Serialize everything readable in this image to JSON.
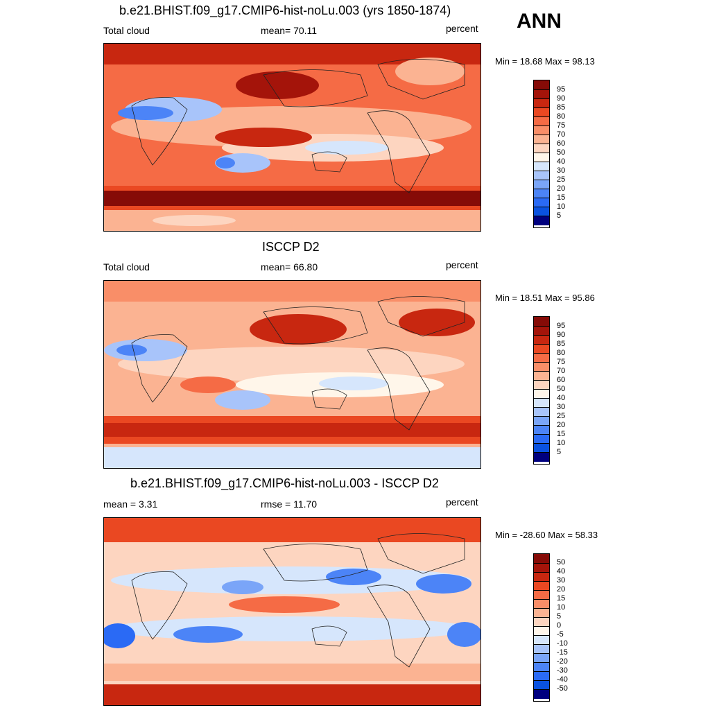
{
  "season": "ANN",
  "colors": {
    "abs_scale": [
      "#00007f",
      "#0033cc",
      "#0a52e0",
      "#2a6af5",
      "#4c84f7",
      "#7aa5f8",
      "#a8c4fa",
      "#d6e6fc",
      "#fff6ea",
      "#fdd5c0",
      "#fbb392",
      "#f98e68",
      "#f56b45",
      "#ea4822",
      "#c82710",
      "#a4140a",
      "#860b07"
    ],
    "diff_scale": [
      "#00007f",
      "#0033cc",
      "#0a52e0",
      "#2a6af5",
      "#4c84f7",
      "#7aa5f8",
      "#a8c4fa",
      "#d6e6fc",
      "#fff6ea",
      "#fdd5c0",
      "#fbb392",
      "#f98e68",
      "#f56b45",
      "#ea4822",
      "#c82710",
      "#a4140a",
      "#860b07"
    ]
  },
  "panels": [
    {
      "title": "b.e21.BHIST.f09_g17.CMIP6-hist-noLu.003 (yrs 1850-1874)",
      "left_label": "Total cloud",
      "center_label": "mean=  70.11",
      "units": "percent",
      "minmax": "Min =  18.68 Max =  98.13",
      "colorbar_labels": [
        "95",
        "90",
        "85",
        "80",
        "75",
        "70",
        "60",
        "50",
        "40",
        "30",
        "25",
        "20",
        "15",
        "10",
        "5"
      ]
    },
    {
      "title": "ISCCP D2",
      "left_label": "Total cloud",
      "center_label": "mean=  66.80",
      "units": "percent",
      "minmax": "Min =  18.51 Max =  95.86",
      "colorbar_labels": [
        "95",
        "90",
        "85",
        "80",
        "75",
        "70",
        "60",
        "50",
        "40",
        "30",
        "25",
        "20",
        "15",
        "10",
        "5"
      ]
    },
    {
      "title": "b.e21.BHIST.f09_g17.CMIP6-hist-noLu.003 - ISCCP D2",
      "left_label": "mean =   3.31",
      "center_label": "rmse =  11.70",
      "units": "percent",
      "minmax": "Min = -28.60 Max =  58.33",
      "colorbar_labels": [
        "50",
        "40",
        "30",
        "20",
        "15",
        "10",
        "5",
        "0",
        "-5",
        "-10",
        "-15",
        "-20",
        "-30",
        "-40",
        "-50"
      ]
    }
  ]
}
